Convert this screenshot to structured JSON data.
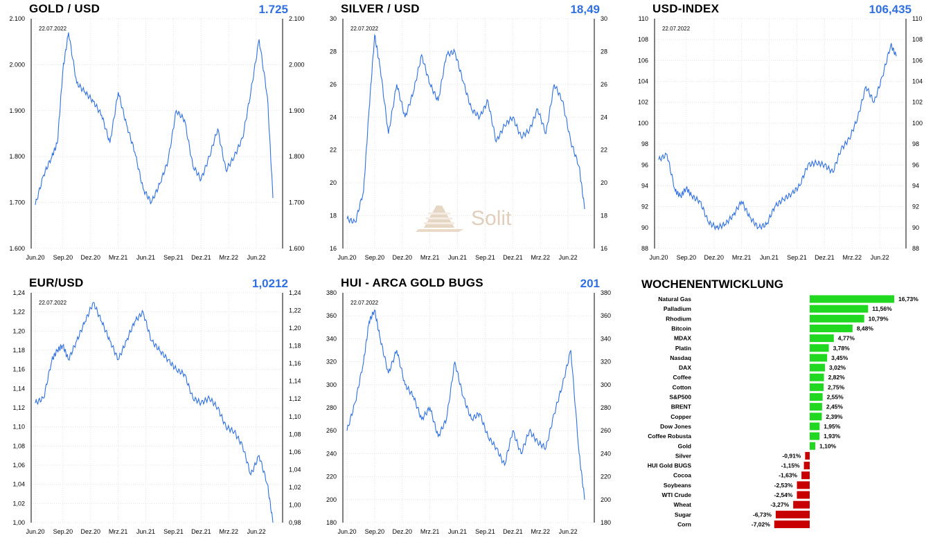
{
  "watermark": {
    "brand": "Solit"
  },
  "weekly": {
    "title": "WOCHENENTWICKLUNG",
    "colors": {
      "positive": "#1fd81f",
      "negative": "#c90000"
    },
    "chart_data": {
      "type": "bar",
      "orientation": "horizontal",
      "title": "WOCHENENTWICKLUNG",
      "categories": [
        "Natural Gas",
        "Palladium",
        "Rhodium",
        "Bitcoin",
        "MDAX",
        "Platin",
        "Nasdaq",
        "DAX",
        "Coffee",
        "Cotton",
        "S&P500",
        "BRENT",
        "Copper",
        "Dow Jones",
        "Coffee Robusta",
        "Gold",
        "Silver",
        "HUI Gold BUGS",
        "Cocoa",
        "Soybeans",
        "WTI Crude",
        "Wheat",
        "Sugar",
        "Corn"
      ],
      "values": [
        16.73,
        11.56,
        10.79,
        8.48,
        4.77,
        3.78,
        3.45,
        3.02,
        2.82,
        2.75,
        2.55,
        2.45,
        2.39,
        1.95,
        1.93,
        1.1,
        -0.91,
        -1.15,
        -1.63,
        -2.53,
        -2.54,
        -3.27,
        -6.73,
        -7.02
      ],
      "labels": [
        "16,73%",
        "11,56%",
        "10,79%",
        "8,48%",
        "4,77%",
        "3,78%",
        "3,45%",
        "3,02%",
        "2,82%",
        "2,75%",
        "2,55%",
        "2,45%",
        "2,39%",
        "1,95%",
        "1,93%",
        "1,10%",
        "-0,91%",
        "-1,15%",
        "-1,63%",
        "-2,53%",
        "-2,54%",
        "-3,27%",
        "-6,73%",
        "-7,02%"
      ],
      "unit": "%"
    }
  },
  "charts": [
    {
      "id": "gold",
      "title": "GOLD / USD",
      "value": "1.725",
      "date_label": "22.07.2022",
      "line_color": "#2f6fe0",
      "chart_data": {
        "type": "line",
        "x_ticks": [
          "Jun.20",
          "Sep.20",
          "Dez.20",
          "Mrz.21",
          "Jun.21",
          "Sep.21",
          "Dez.21",
          "Mrz.22",
          "Jun.22"
        ],
        "y_ticks": [
          1600,
          1700,
          1800,
          1900,
          2000,
          2100
        ],
        "y_tick_labels": [
          "1.600",
          "1.700",
          "1.800",
          "1.900",
          "2.000",
          "2.100"
        ],
        "ylim": [
          1600,
          2100
        ],
        "x": [
          0,
          0.3,
          0.6,
          0.8,
          1.0,
          1.2,
          1.5,
          1.8,
          2.1,
          2.4,
          2.7,
          3.0,
          3.3,
          3.6,
          3.9,
          4.2,
          4.5,
          4.8,
          5.1,
          5.4,
          5.7,
          6.0,
          6.3,
          6.6,
          6.9,
          7.2,
          7.5,
          7.8,
          8.1,
          8.4,
          8.6
        ],
        "values": [
          1695,
          1760,
          1800,
          1830,
          1990,
          2070,
          1960,
          1940,
          1920,
          1890,
          1830,
          1940,
          1870,
          1810,
          1730,
          1700,
          1740,
          1790,
          1900,
          1880,
          1780,
          1750,
          1800,
          1860,
          1770,
          1800,
          1840,
          1940,
          2055,
          1930,
          1710
        ]
      }
    },
    {
      "id": "silver",
      "title": "SILVER / USD",
      "value": "18,49",
      "date_label": "22.07.2022",
      "line_color": "#2f6fe0",
      "chart_data": {
        "type": "line",
        "x_ticks": [
          "Jun.20",
          "Sep.20",
          "Dez.20",
          "Mrz.21",
          "Jun.21",
          "Sep.21",
          "Dez.21",
          "Mrz.22",
          "Jun.22"
        ],
        "y_ticks": [
          16,
          18,
          20,
          22,
          24,
          26,
          28,
          30
        ],
        "y_tick_labels": [
          "16",
          "18",
          "20",
          "22",
          "24",
          "26",
          "28",
          "30"
        ],
        "ylim": [
          16,
          30
        ],
        "x": [
          0,
          0.3,
          0.6,
          0.8,
          1.0,
          1.2,
          1.5,
          1.8,
          2.1,
          2.4,
          2.7,
          3.0,
          3.3,
          3.6,
          3.9,
          4.2,
          4.5,
          4.8,
          5.1,
          5.4,
          5.7,
          6.0,
          6.3,
          6.6,
          6.9,
          7.2,
          7.5,
          7.8,
          8.1,
          8.4,
          8.6
        ],
        "values": [
          17.8,
          17.6,
          19.5,
          24.5,
          29.0,
          27.0,
          23.0,
          26.0,
          24.0,
          25.5,
          27.8,
          26.0,
          25.0,
          27.8,
          28.0,
          26.2,
          24.5,
          24.0,
          25.0,
          22.5,
          23.5,
          24.0,
          22.8,
          23.2,
          24.5,
          23.0,
          26.0,
          25.0,
          22.5,
          21.0,
          18.4
        ]
      }
    },
    {
      "id": "usd",
      "title": "USD-INDEX",
      "value": "106,435",
      "date_label": "22.07.2022",
      "line_color": "#2f6fe0",
      "chart_data": {
        "type": "line",
        "x_ticks": [
          "Jun.20",
          "Sep.20",
          "Dez.20",
          "Mrz.21",
          "Jun.21",
          "Sep.21",
          "Dez.21",
          "Mrz.22",
          "Jun.22"
        ],
        "y_ticks": [
          88,
          90,
          92,
          94,
          96,
          98,
          100,
          102,
          104,
          106,
          108,
          110
        ],
        "y_tick_labels": [
          "88",
          "90",
          "92",
          "94",
          "96",
          "98",
          "100",
          "102",
          "104",
          "106",
          "108",
          "110"
        ],
        "ylim": [
          88,
          110
        ],
        "x": [
          0,
          0.3,
          0.6,
          0.8,
          1.0,
          1.2,
          1.5,
          1.8,
          2.1,
          2.4,
          2.7,
          3.0,
          3.3,
          3.6,
          3.9,
          4.2,
          4.5,
          4.8,
          5.1,
          5.4,
          5.7,
          6.0,
          6.3,
          6.6,
          6.9,
          7.2,
          7.5,
          7.8,
          8.1,
          8.4,
          8.6
        ],
        "values": [
          96.5,
          97.0,
          93.5,
          93.0,
          93.8,
          93.0,
          92.5,
          90.5,
          90.0,
          90.3,
          91.2,
          92.5,
          91.0,
          90.0,
          90.3,
          92.0,
          92.7,
          93.2,
          94.0,
          96.0,
          96.2,
          96.0,
          95.3,
          97.5,
          98.5,
          100.5,
          103.5,
          102.0,
          104.5,
          107.5,
          106.4
        ]
      }
    },
    {
      "id": "eur",
      "title": "EUR/USD",
      "value": "1,0212",
      "date_label": "22.07.2022",
      "line_color": "#2f6fe0",
      "chart_data": {
        "type": "line",
        "x_ticks": [
          "Jun.20",
          "Sep.20",
          "Dez.20",
          "Mrz.21",
          "Jun.21",
          "Sep.21",
          "Dez.21",
          "Mrz.22",
          "Jun.22"
        ],
        "y_ticks": [
          1.0,
          1.02,
          1.04,
          1.06,
          1.08,
          1.1,
          1.12,
          1.14,
          1.16,
          1.18,
          1.2,
          1.22,
          1.24
        ],
        "y_tick_labels": [
          "1,00",
          "1,02",
          "1,04",
          "1,06",
          "1,08",
          "1,10",
          "1,12",
          "1,14",
          "1,16",
          "1,18",
          "1,20",
          "1,22",
          "1,24"
        ],
        "y2_tick_labels": [
          "0,98",
          "1,00",
          "1,02",
          "1,04",
          "1,06",
          "1,08",
          "1,10",
          "1,12",
          "1,14",
          "1,16",
          "1,18",
          "1,20",
          "1,22",
          "1,24"
        ],
        "ylim": [
          1.0,
          1.24
        ],
        "x": [
          0,
          0.3,
          0.6,
          0.8,
          1.0,
          1.2,
          1.5,
          1.8,
          2.1,
          2.4,
          2.7,
          3.0,
          3.3,
          3.6,
          3.9,
          4.2,
          4.5,
          4.8,
          5.1,
          5.4,
          5.7,
          6.0,
          6.3,
          6.6,
          6.9,
          7.2,
          7.5,
          7.8,
          8.1,
          8.4,
          8.6
        ],
        "values": [
          1.125,
          1.13,
          1.17,
          1.18,
          1.185,
          1.17,
          1.19,
          1.21,
          1.23,
          1.21,
          1.19,
          1.17,
          1.19,
          1.21,
          1.22,
          1.19,
          1.18,
          1.17,
          1.16,
          1.155,
          1.13,
          1.125,
          1.13,
          1.12,
          1.1,
          1.095,
          1.08,
          1.05,
          1.07,
          1.04,
          1.0
        ]
      }
    },
    {
      "id": "hui",
      "title": "HUI - ARCA GOLD BUGS",
      "value": "201",
      "date_label": "22.07.2022",
      "line_color": "#2f6fe0",
      "chart_data": {
        "type": "line",
        "x_ticks": [
          "Jun.20",
          "Sep.20",
          "Dez.20",
          "Mrz.21",
          "Jun.21",
          "Sep.21",
          "Dez.21",
          "Mrz.22",
          "Jun.22"
        ],
        "y_ticks": [
          180,
          200,
          220,
          240,
          260,
          280,
          300,
          320,
          340,
          360,
          380
        ],
        "y_tick_labels": [
          "180",
          "200",
          "220",
          "240",
          "260",
          "280",
          "300",
          "320",
          "340",
          "360",
          "380"
        ],
        "ylim": [
          180,
          380
        ],
        "x": [
          0,
          0.3,
          0.6,
          0.8,
          1.0,
          1.2,
          1.5,
          1.8,
          2.1,
          2.4,
          2.7,
          3.0,
          3.3,
          3.6,
          3.9,
          4.2,
          4.5,
          4.8,
          5.1,
          5.4,
          5.7,
          6.0,
          6.3,
          6.6,
          6.9,
          7.2,
          7.5,
          7.8,
          8.1,
          8.4,
          8.6
        ],
        "values": [
          260,
          285,
          320,
          355,
          365,
          340,
          310,
          330,
          300,
          290,
          270,
          280,
          255,
          270,
          320,
          290,
          270,
          275,
          255,
          245,
          230,
          260,
          240,
          260,
          250,
          245,
          275,
          300,
          330,
          240,
          200
        ]
      }
    }
  ]
}
